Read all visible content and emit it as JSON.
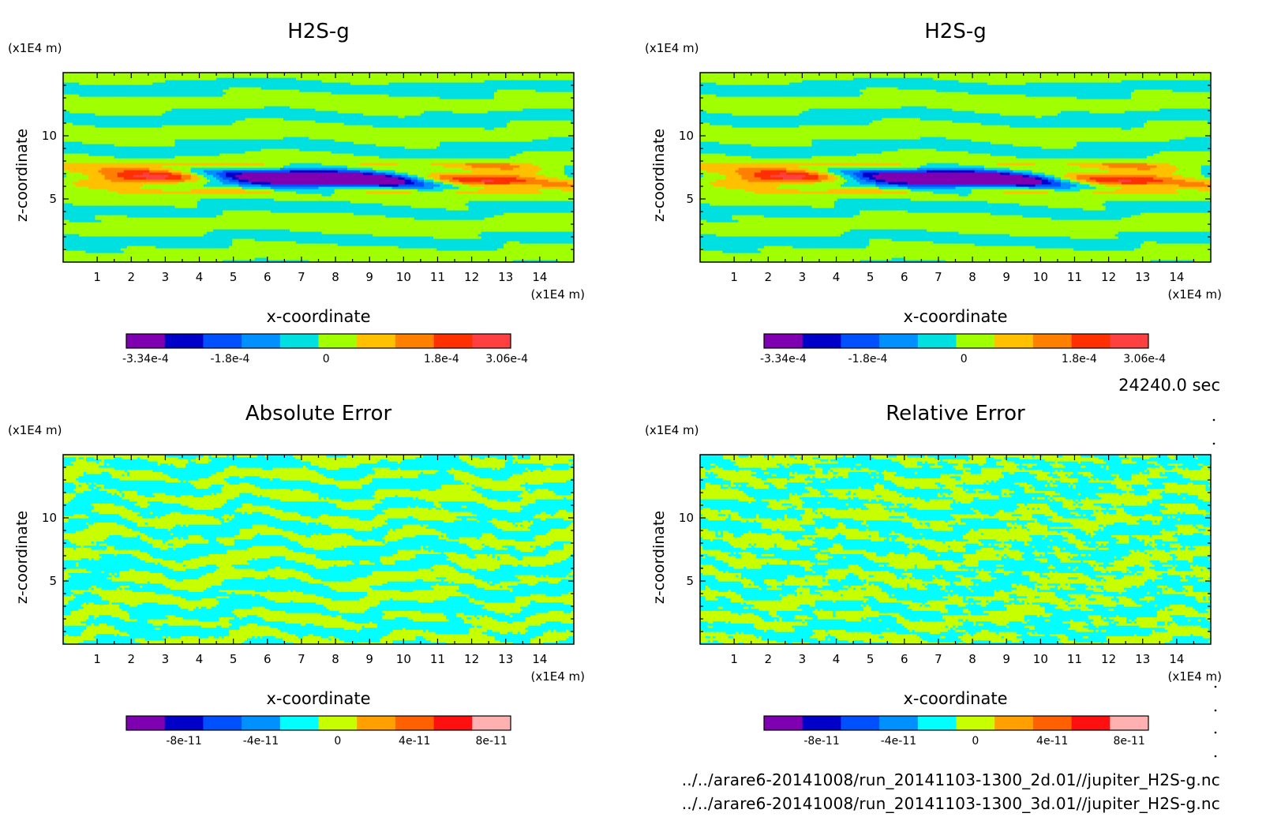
{
  "timestamp": "24240.0 sec",
  "files": [
    "../../arare6-20141008/run_20141103-1300_2d.01//jupiter_H2S-g.nc",
    "../../arare6-20141008/run_20141103-1300_3d.01//jupiter_H2S-g.nc"
  ],
  "chart_data": [
    {
      "type": "heatmap",
      "title": "H2S-g",
      "xlabel": "x-coordinate",
      "ylabel": "z-coordinate",
      "x_unit": "(x1E4 m)",
      "y_unit": "(x1E4 m)",
      "xlim": [
        0,
        15
      ],
      "ylim": [
        0,
        15
      ],
      "x_ticks": [
        1,
        2,
        3,
        4,
        5,
        6,
        7,
        8,
        9,
        10,
        11,
        12,
        13,
        14
      ],
      "y_ticks": [
        5,
        10
      ],
      "colorbar": {
        "levels": 10,
        "colors": [
          "#7f00b0",
          "#0000c8",
          "#0050ff",
          "#0090ff",
          "#00e0e0",
          "#a0ff00",
          "#ffc000",
          "#ff8000",
          "#ff3000",
          "#ff4040"
        ],
        "tick_labels": [
          "-3.34e-4",
          "-1.8e-4",
          "0",
          "1.8e-4",
          "3.06e-4"
        ],
        "tick_values": [
          -0.000334,
          -0.00018,
          0,
          0.00018,
          0.000306
        ]
      }
    },
    {
      "type": "heatmap",
      "title": "H2S-g",
      "xlabel": "x-coordinate",
      "ylabel": "z-coordinate",
      "x_unit": "(x1E4 m)",
      "y_unit": "(x1E4 m)",
      "xlim": [
        0,
        15
      ],
      "ylim": [
        0,
        15
      ],
      "x_ticks": [
        1,
        2,
        3,
        4,
        5,
        6,
        7,
        8,
        9,
        10,
        11,
        12,
        13,
        14
      ],
      "y_ticks": [
        5,
        10
      ],
      "colorbar": {
        "levels": 10,
        "colors": [
          "#7f00b0",
          "#0000c8",
          "#0050ff",
          "#0090ff",
          "#00e0e0",
          "#a0ff00",
          "#ffc000",
          "#ff8000",
          "#ff3000",
          "#ff4040"
        ],
        "tick_labels": [
          "-3.34e-4",
          "-1.8e-4",
          "0",
          "1.8e-4",
          "3.06e-4"
        ],
        "tick_values": [
          -0.000334,
          -0.00018,
          0,
          0.00018,
          0.000306
        ]
      }
    },
    {
      "type": "heatmap",
      "title": "Absolute Error",
      "xlabel": "x-coordinate",
      "ylabel": "z-coordinate",
      "x_unit": "(x1E4 m)",
      "y_unit": "(x1E4 m)",
      "xlim": [
        0,
        15
      ],
      "ylim": [
        0,
        15
      ],
      "x_ticks": [
        1,
        2,
        3,
        4,
        5,
        6,
        7,
        8,
        9,
        10,
        11,
        12,
        13,
        14
      ],
      "y_ticks": [
        5,
        10
      ],
      "colorbar": {
        "levels": 10,
        "colors": [
          "#7f00b0",
          "#0000c8",
          "#0050ff",
          "#0090ff",
          "#00ffff",
          "#c8ff00",
          "#ffa000",
          "#ff6000",
          "#ff1010",
          "#ffb0b0"
        ],
        "tick_labels": [
          "-8e-11",
          "-4e-11",
          "0",
          "4e-11",
          "8e-11"
        ],
        "tick_values": [
          -8e-11,
          -4e-11,
          0,
          4e-11,
          8e-11
        ]
      }
    },
    {
      "type": "heatmap",
      "title": "Relative Error",
      "xlabel": "x-coordinate",
      "ylabel": "z-coordinate",
      "x_unit": "(x1E4 m)",
      "y_unit": "(x1E4 m)",
      "xlim": [
        0,
        15
      ],
      "ylim": [
        0,
        15
      ],
      "x_ticks": [
        1,
        2,
        3,
        4,
        5,
        6,
        7,
        8,
        9,
        10,
        11,
        12,
        13,
        14
      ],
      "y_ticks": [
        5,
        10
      ],
      "colorbar": {
        "levels": 10,
        "colors": [
          "#7f00b0",
          "#0000c8",
          "#0050ff",
          "#0090ff",
          "#00ffff",
          "#c8ff00",
          "#ffa000",
          "#ff6000",
          "#ff1010",
          "#ffb0b0"
        ],
        "tick_labels": [
          "-8e-11",
          "-4e-11",
          "0",
          "4e-11",
          "8e-11"
        ],
        "tick_values": [
          -8e-11,
          -4e-11,
          0,
          4e-11,
          8e-11
        ]
      }
    }
  ]
}
